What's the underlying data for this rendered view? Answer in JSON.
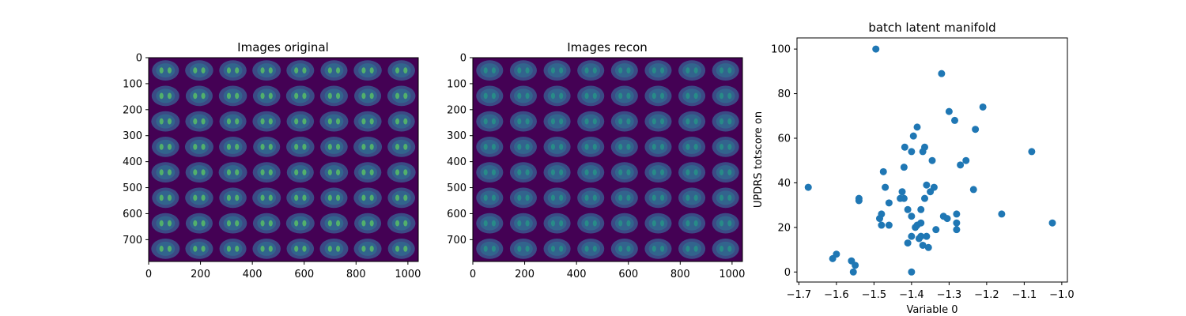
{
  "chart_data": [
    {
      "type": "heatmap",
      "title": "Images original",
      "xticks": [
        "0",
        "200",
        "400",
        "600",
        "800",
        "1000"
      ],
      "yticks": [
        "0",
        "100",
        "200",
        "300",
        "400",
        "500",
        "600",
        "700"
      ],
      "xlim": [
        0,
        1040
      ],
      "ylim": [
        0,
        784
      ],
      "grid_rows": 8,
      "grid_cols": 8,
      "colormap": "viridis",
      "background_color": "#440154",
      "cell_color": "#3b528b",
      "hot_color": "#5ec962"
    },
    {
      "type": "heatmap",
      "title": "Images recon",
      "xticks": [
        "0",
        "200",
        "400",
        "600",
        "800",
        "1000"
      ],
      "yticks": [
        "0",
        "100",
        "200",
        "300",
        "400",
        "500",
        "600",
        "700"
      ],
      "xlim": [
        0,
        1040
      ],
      "ylim": [
        0,
        784
      ],
      "grid_rows": 8,
      "grid_cols": 8,
      "colormap": "viridis",
      "background_color": "#440154",
      "cell_color": "#3b528b",
      "hot_color": "#21a585"
    },
    {
      "type": "scatter",
      "title": "batch latent manifold",
      "xlabel": "Variable 0",
      "ylabel": "UPDRS totscore on",
      "xlim": [
        -1.705,
        -0.985
      ],
      "ylim": [
        -4.5,
        105
      ],
      "xticks": [
        "−1.7",
        "−1.6",
        "−1.5",
        "−1.4",
        "−1.3",
        "−1.2",
        "−1.1",
        "−1.0"
      ],
      "xtick_values": [
        -1.7,
        -1.6,
        -1.5,
        -1.4,
        -1.3,
        -1.2,
        -1.1,
        -1.0
      ],
      "yticks": [
        "0",
        "20",
        "40",
        "60",
        "80",
        "100"
      ],
      "ytick_values": [
        0,
        20,
        40,
        60,
        80,
        100
      ],
      "color": "#1f77b4",
      "points": [
        [
          -1.675,
          38
        ],
        [
          -1.61,
          6
        ],
        [
          -1.6,
          8
        ],
        [
          -1.56,
          5
        ],
        [
          -1.555,
          0
        ],
        [
          -1.55,
          3
        ],
        [
          -1.54,
          32
        ],
        [
          -1.54,
          33
        ],
        [
          -1.495,
          100
        ],
        [
          -1.485,
          24
        ],
        [
          -1.48,
          21
        ],
        [
          -1.48,
          26
        ],
        [
          -1.475,
          45
        ],
        [
          -1.47,
          38
        ],
        [
          -1.46,
          31
        ],
        [
          -1.46,
          21
        ],
        [
          -1.43,
          33
        ],
        [
          -1.425,
          36
        ],
        [
          -1.42,
          47
        ],
        [
          -1.42,
          33
        ],
        [
          -1.418,
          56
        ],
        [
          -1.41,
          28
        ],
        [
          -1.41,
          13
        ],
        [
          -1.4,
          54
        ],
        [
          -1.4,
          25
        ],
        [
          -1.4,
          16
        ],
        [
          -1.4,
          0
        ],
        [
          -1.395,
          61
        ],
        [
          -1.39,
          20
        ],
        [
          -1.385,
          65
        ],
        [
          -1.385,
          21
        ],
        [
          -1.38,
          15
        ],
        [
          -1.375,
          16
        ],
        [
          -1.375,
          28
        ],
        [
          -1.375,
          22
        ],
        [
          -1.37,
          54
        ],
        [
          -1.37,
          12
        ],
        [
          -1.365,
          56
        ],
        [
          -1.365,
          33
        ],
        [
          -1.36,
          39
        ],
        [
          -1.36,
          16
        ],
        [
          -1.355,
          11
        ],
        [
          -1.35,
          36
        ],
        [
          -1.345,
          50
        ],
        [
          -1.34,
          38
        ],
        [
          -1.335,
          19
        ],
        [
          -1.32,
          89
        ],
        [
          -1.315,
          25
        ],
        [
          -1.305,
          24
        ],
        [
          -1.3,
          72
        ],
        [
          -1.285,
          68
        ],
        [
          -1.28,
          26
        ],
        [
          -1.28,
          22
        ],
        [
          -1.28,
          19
        ],
        [
          -1.27,
          48
        ],
        [
          -1.255,
          50
        ],
        [
          -1.235,
          37
        ],
        [
          -1.23,
          64
        ],
        [
          -1.21,
          74
        ],
        [
          -1.16,
          26
        ],
        [
          -1.08,
          54
        ],
        [
          -1.025,
          22
        ]
      ]
    }
  ]
}
